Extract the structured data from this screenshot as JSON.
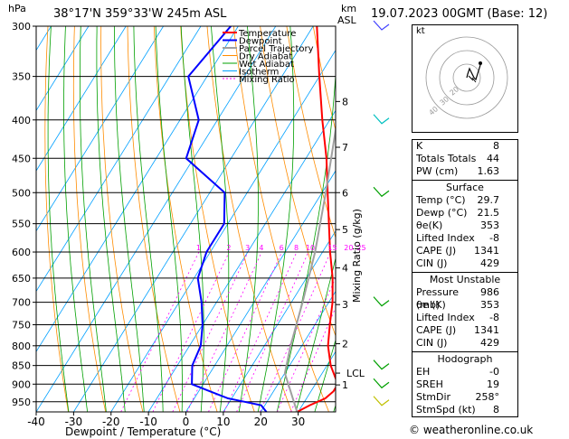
{
  "header": {
    "location": "38°17'N  359°33'W  245m  ASL",
    "datetime": "19.07.2023  00GMT  (Base: 12)",
    "hpa_label": "hPa",
    "km_label": "km",
    "asl_label": "ASL"
  },
  "legend": [
    "Temperature",
    "Dewpoint",
    "Parcel Trajectory",
    "Dry Adiabat",
    "Wet Adiabat",
    "Isotherm",
    "Mixing Ratio"
  ],
  "hodograph": {
    "label": "kt",
    "ring_labels": [
      "40",
      "30",
      "20"
    ]
  },
  "indices": {
    "k": {
      "label": "K",
      "value": "8"
    },
    "tt": {
      "label": "Totals Totals",
      "value": "44"
    },
    "pw": {
      "label": "PW (cm)",
      "value": "1.63"
    },
    "surface_title": "Surface",
    "surface": [
      {
        "label": "Temp (°C)",
        "value": "29.7"
      },
      {
        "label": "Dewp (°C)",
        "value": "21.5"
      },
      {
        "label": "θe(K)",
        "value": "353"
      },
      {
        "label": "Lifted Index",
        "value": "-8"
      },
      {
        "label": "CAPE (J)",
        "value": "1341"
      },
      {
        "label": "CIN (J)",
        "value": "429"
      }
    ],
    "mu_title": "Most Unstable",
    "mu": [
      {
        "label": "Pressure (mb)",
        "value": "986"
      },
      {
        "label": "θe (K)",
        "value": "353"
      },
      {
        "label": "Lifted Index",
        "value": "-8"
      },
      {
        "label": "CAPE (J)",
        "value": "1341"
      },
      {
        "label": "CIN (J)",
        "value": "429"
      }
    ],
    "hodo_title": "Hodograph",
    "hodo": [
      {
        "label": "EH",
        "value": "-0"
      },
      {
        "label": "SREH",
        "value": "19"
      },
      {
        "label": "StmDir",
        "value": "258°"
      },
      {
        "label": "StmSpd (kt)",
        "value": "8"
      }
    ]
  },
  "credit": "© weatheronline.co.uk",
  "colors": {
    "temperature": "#ff0000",
    "dewpoint": "#0000ff",
    "parcel": "#a0a0a0",
    "dry_adiabat": "#ff8c00",
    "wet_adiabat": "#00a000",
    "isotherm": "#00a0ff",
    "mixing_ratio": "#ff00ff"
  },
  "chart_data": {
    "type": "line",
    "xlabel": "Dewpoint / Temperature (°C)",
    "ylabel_right": "Mixing Ratio (g/kg)",
    "x_ticks": [
      -40,
      -30,
      -20,
      -10,
      0,
      10,
      20,
      30
    ],
    "pressure_levels": [
      300,
      350,
      400,
      450,
      500,
      550,
      600,
      650,
      700,
      750,
      800,
      850,
      900,
      950
    ],
    "height_km": [
      {
        "km": "8",
        "p": 378
      },
      {
        "km": "7",
        "p": 435
      },
      {
        "km": "6",
        "p": 500
      },
      {
        "km": "5",
        "p": 560
      },
      {
        "km": "4",
        "p": 630
      },
      {
        "km": "3",
        "p": 705
      },
      {
        "km": "2",
        "p": 795
      },
      {
        "km": "LCL",
        "p": 870
      },
      {
        "km": "1",
        "p": 902
      }
    ],
    "mixing_ratio_labels": [
      "1",
      "2",
      "3",
      "4",
      "6",
      "8",
      "10",
      "15",
      "20",
      "25"
    ],
    "series": [
      {
        "name": "Temperature",
        "p": [
          980,
          960,
          940,
          920,
          900,
          850,
          800,
          750,
          700,
          650,
          600,
          550,
          500,
          450,
          400,
          350,
          300
        ],
        "t": [
          29.7,
          32,
          35,
          36,
          36,
          31,
          27,
          24,
          21,
          17,
          12,
          7,
          1.5,
          -4.5,
          -12,
          -20,
          -29
        ]
      },
      {
        "name": "Dewpoint",
        "p": [
          980,
          960,
          950,
          940,
          920,
          900,
          850,
          800,
          750,
          700,
          650,
          600,
          550,
          500,
          450,
          400,
          350,
          300
        ],
        "t": [
          21.5,
          19,
          14,
          9,
          3,
          -3,
          -6,
          -7,
          -10,
          -14,
          -19,
          -21,
          -21,
          -26,
          -42,
          -45,
          -55,
          -52
        ]
      },
      {
        "name": "Parcel Trajectory",
        "p": [
          980,
          870,
          800,
          700,
          600,
          500,
          400,
          350,
          300
        ],
        "t": [
          29.7,
          20,
          17,
          13,
          8,
          1,
          -8,
          -14,
          -22
        ]
      }
    ]
  }
}
